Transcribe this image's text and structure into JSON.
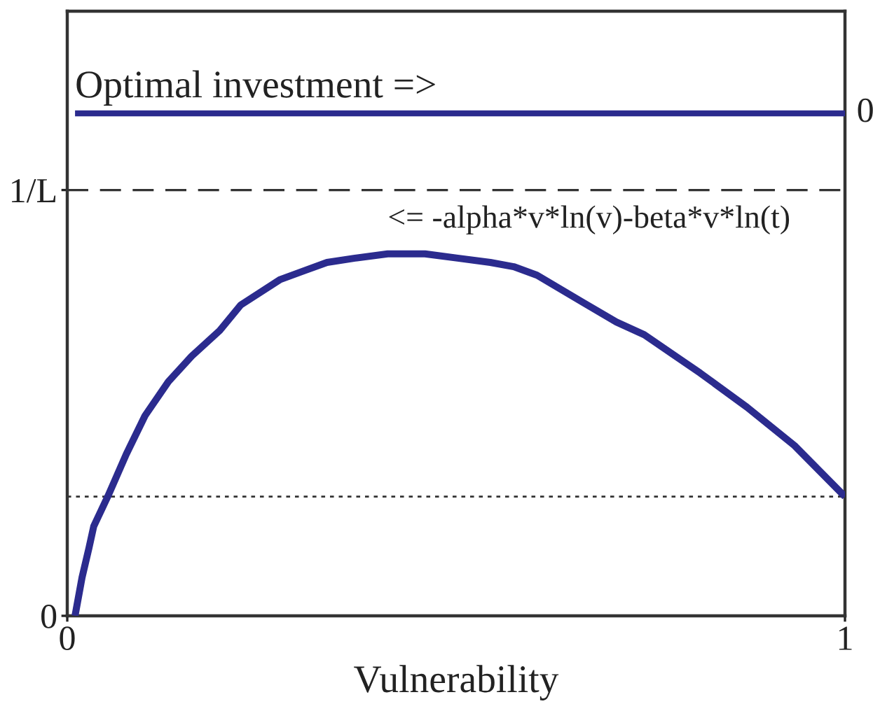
{
  "chart_data": {
    "type": "line",
    "xlabel": "Vulnerability",
    "xlim": [
      0,
      1
    ],
    "xticks": [
      0,
      1
    ],
    "ylim": [
      0,
      1.42
    ],
    "yticks": [
      0,
      {
        "value": 1,
        "label": "1/L"
      }
    ],
    "series": [
      {
        "name": "Optimal investment =>",
        "color": "#2b2b8e",
        "x": [
          0.01,
          1
        ],
        "values": [
          1.18,
          1.18
        ]
      },
      {
        "name": "<= -alpha*v*ln(v)-beta*v*ln(t)",
        "color": "#2b2b8e",
        "x": [
          0.01,
          0.019,
          0.028,
          0.034,
          0.052,
          0.064,
          0.076,
          0.1,
          0.13,
          0.16,
          0.196,
          0.223,
          0.274,
          0.304,
          0.334,
          0.37,
          0.412,
          0.46,
          0.502,
          0.544,
          0.574,
          0.604,
          0.664,
          0.706,
          0.742,
          0.814,
          0.874,
          0.935,
          1.0
        ],
        "values": [
          0.0,
          0.09,
          0.16,
          0.21,
          0.28,
          0.33,
          0.38,
          0.47,
          0.55,
          0.61,
          0.67,
          0.73,
          0.79,
          0.81,
          0.83,
          0.84,
          0.85,
          0.85,
          0.84,
          0.83,
          0.82,
          0.8,
          0.735,
          0.69,
          0.66,
          0.57,
          0.49,
          0.4,
          0.28
        ]
      }
    ],
    "ref_lines": [
      {
        "axis": "y",
        "value": 1,
        "color": "#333333",
        "line_style": "dashed"
      },
      {
        "axis": "y",
        "value": 0.28,
        "color": "#333333",
        "line_style": "dotted"
      }
    ],
    "annotations": [
      {
        "text": "0",
        "x": 1,
        "y": 1.18
      }
    ],
    "grid": false,
    "legend": false,
    "marker": "none",
    "line_style": "solid"
  }
}
